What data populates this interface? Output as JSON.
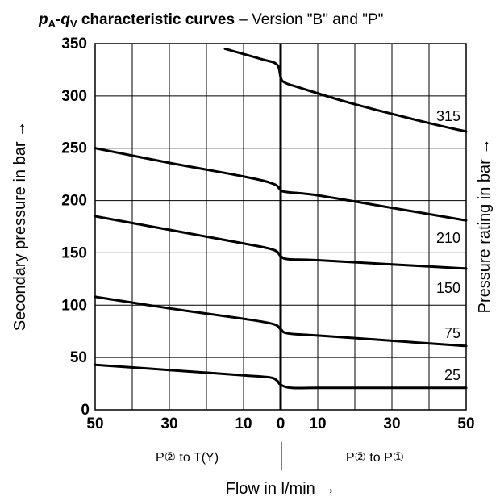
{
  "chart_data": {
    "type": "line",
    "title_main_p": "p",
    "title_main_sub_a": "A",
    "title_main_dash": "-",
    "title_main_q": "q",
    "title_main_sub_v": "V",
    "title_main_rest": " characteristic curves",
    "subtitle": " – Version \"B\" and \"P\"",
    "ylabel_left": "Secondary pressure in bar  →",
    "ylabel_right": "Pressure rating in bar  →",
    "xlabel": "Flow in l/min  →",
    "x_region_left": "P② to T(Y)",
    "x_region_right": "P② to P①",
    "ylim": [
      0,
      350
    ],
    "xlim": [
      -50,
      50
    ],
    "y_ticks": [
      0,
      50,
      100,
      150,
      200,
      250,
      300,
      350
    ],
    "x_ticks": [
      {
        "value": -50,
        "label": "50"
      },
      {
        "value": -30,
        "label": "30"
      },
      {
        "value": -10,
        "label": "10"
      },
      {
        "value": 0,
        "label": "0"
      },
      {
        "value": 10,
        "label": "10"
      },
      {
        "value": 30,
        "label": "30"
      },
      {
        "value": 50,
        "label": "50"
      }
    ],
    "grid": true,
    "series": [
      {
        "name": "315",
        "points": [
          [
            -15,
            345
          ],
          [
            -5,
            335
          ],
          [
            -1,
            330
          ],
          [
            0,
            318
          ],
          [
            1,
            313
          ],
          [
            5,
            308
          ],
          [
            20,
            292
          ],
          [
            40,
            274
          ],
          [
            50,
            266
          ]
        ]
      },
      {
        "name": "210",
        "points": [
          [
            -50,
            250
          ],
          [
            -30,
            236
          ],
          [
            -10,
            223
          ],
          [
            -2,
            216
          ],
          [
            0,
            210
          ],
          [
            2,
            208
          ],
          [
            10,
            205
          ],
          [
            30,
            193
          ],
          [
            50,
            181
          ]
        ]
      },
      {
        "name": "150",
        "points": [
          [
            -50,
            185
          ],
          [
            -30,
            172
          ],
          [
            -10,
            159
          ],
          [
            -2,
            153
          ],
          [
            0,
            147
          ],
          [
            2,
            144
          ],
          [
            10,
            143
          ],
          [
            30,
            139
          ],
          [
            50,
            135
          ]
        ]
      },
      {
        "name": "75",
        "points": [
          [
            -50,
            108
          ],
          [
            -30,
            97
          ],
          [
            -10,
            87
          ],
          [
            -2,
            82
          ],
          [
            0,
            77
          ],
          [
            2,
            73
          ],
          [
            10,
            71
          ],
          [
            30,
            66
          ],
          [
            50,
            61
          ]
        ]
      },
      {
        "name": "25",
        "points": [
          [
            -50,
            43
          ],
          [
            -30,
            38
          ],
          [
            -10,
            33
          ],
          [
            -3,
            31
          ],
          [
            -1,
            28
          ],
          [
            0,
            24
          ],
          [
            3,
            21
          ],
          [
            10,
            21
          ],
          [
            30,
            21
          ],
          [
            50,
            21
          ]
        ]
      }
    ]
  }
}
